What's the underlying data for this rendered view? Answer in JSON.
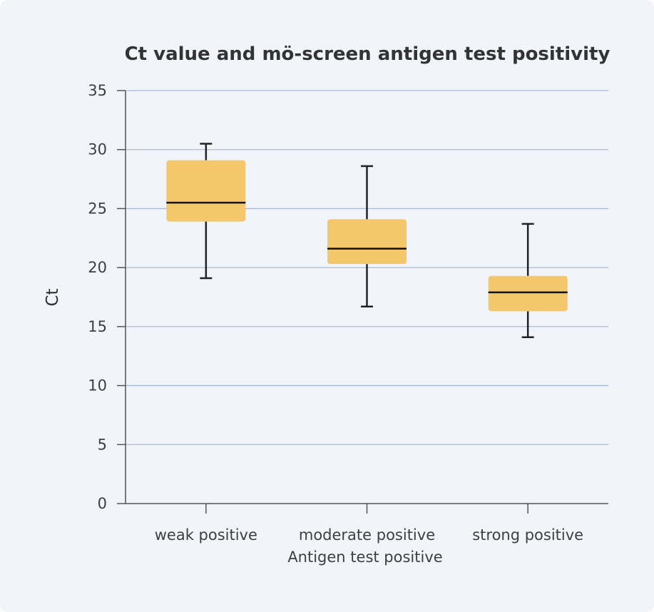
{
  "chart_data": {
    "type": "box",
    "title": "Ct value and mö-screen antigen test positivity",
    "xlabel": "Antigen test positive",
    "ylabel": "Ct",
    "ylim": [
      0,
      35
    ],
    "yticks": [
      0,
      5,
      10,
      15,
      20,
      25,
      30,
      35
    ],
    "grid": true,
    "categories": [
      "weak positive",
      "moderate positive",
      "strong positive"
    ],
    "boxes": [
      {
        "category": "weak positive",
        "min": 19.1,
        "q1": 23.9,
        "median": 25.5,
        "q3": 29.1,
        "max": 30.5
      },
      {
        "category": "moderate positive",
        "min": 16.7,
        "q1": 20.3,
        "median": 21.6,
        "q3": 24.1,
        "max": 28.6
      },
      {
        "category": "strong positive",
        "min": 14.1,
        "q1": 16.3,
        "median": 17.9,
        "q3": 19.3,
        "max": 23.7
      }
    ],
    "colors": {
      "box_fill": "#f4c76c",
      "median_line": "#111111",
      "whisker": "#222222",
      "grid": "#a9bad6",
      "axis": "#555555",
      "background": "#f1f5f9"
    }
  }
}
